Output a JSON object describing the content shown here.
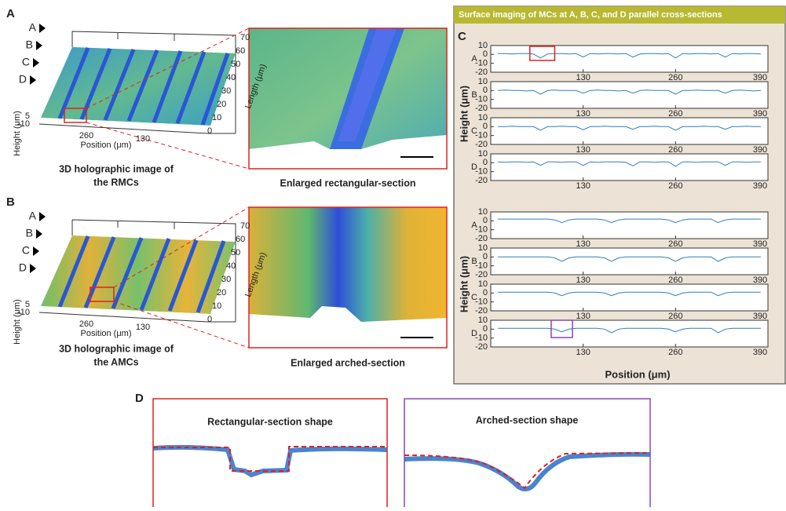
{
  "panel_labels": [
    "A",
    "B",
    "C",
    "D"
  ],
  "panel_a": {
    "row_markers": [
      "A",
      "B",
      "C",
      "D"
    ],
    "length_ticks": [
      70,
      60,
      50,
      40,
      30,
      20,
      10,
      0
    ],
    "length_label": "Length (μm)",
    "position_ticks": [
      260,
      130
    ],
    "position_label": "Position (μm)",
    "height_ticks": [
      5,
      -10
    ],
    "height_label": "Height (μm)",
    "caption": [
      "3D holographic image of",
      "the RMCs"
    ],
    "enlarged_caption": "Enlarged rectangular-section"
  },
  "panel_b": {
    "row_markers": [
      "A",
      "B",
      "C",
      "D"
    ],
    "length_ticks": [
      70,
      60,
      50,
      40,
      30,
      20,
      10,
      0
    ],
    "length_label": "Length (μm)",
    "position_ticks": [
      260,
      130
    ],
    "position_label": "Position (μm)",
    "height_ticks": [
      5,
      -10
    ],
    "height_label": "Height (μm)",
    "caption": [
      "3D holographic image of",
      "the AMCs"
    ],
    "enlarged_caption": "Enlarged arched-section"
  },
  "panel_c": {
    "title": "Surface imaging of  MCs at A, B, C, and D parallel cross-sections",
    "x_label": "Position (μm)",
    "y_label": "Height (μm)",
    "xlim": [
      0,
      390
    ],
    "ylim": [
      -20,
      10
    ],
    "xticks": [
      130,
      260,
      390
    ],
    "yticks": [
      10,
      0,
      -10,
      -20
    ],
    "color": "#2f7fc1",
    "x": [
      10,
      20,
      30,
      40,
      50,
      60,
      70,
      80,
      90,
      100,
      110,
      120,
      130,
      140,
      150,
      160,
      170,
      180,
      190,
      200,
      210,
      220,
      230,
      240,
      250,
      260,
      270,
      280,
      290,
      300,
      310,
      320,
      330,
      340,
      350,
      360,
      370,
      380
    ],
    "groups": [
      {
        "plots": [
          {
            "label": "A",
            "values": [
              1,
              1,
              0.5,
              1,
              1,
              0.5,
              -4,
              0.5,
              1,
              1,
              0.5,
              1,
              -3,
              1,
              0.5,
              1,
              1,
              0.5,
              1,
              -3,
              0.5,
              1,
              1,
              0.5,
              1,
              -4,
              1,
              0.5,
              1,
              1,
              0.5,
              1,
              -3,
              1,
              0.5,
              1,
              1,
              0.5
            ]
          },
          {
            "label": "B",
            "values": [
              0,
              0.5,
              0,
              0,
              -0.5,
              0,
              -4,
              0,
              0.5,
              0,
              0,
              0,
              -3,
              0,
              0.5,
              0,
              0,
              -0.5,
              0,
              -3,
              0,
              0.5,
              0,
              0,
              0,
              -4,
              0,
              0,
              0.5,
              0,
              0,
              0,
              -3,
              0,
              0.5,
              0,
              -0.5,
              0
            ]
          },
          {
            "label": "C",
            "values": [
              0,
              0,
              0.5,
              0,
              0,
              0,
              -4,
              0,
              0,
              0.5,
              0,
              0,
              -3.5,
              0,
              0,
              0.5,
              0,
              0,
              0,
              -3,
              0,
              0,
              0.5,
              0,
              0,
              -4,
              0,
              0,
              0,
              0.5,
              0,
              0,
              -3,
              0,
              0,
              0.5,
              0,
              0
            ]
          },
          {
            "label": "D",
            "values": [
              1,
              0.5,
              1,
              1,
              0.5,
              1,
              -3,
              1,
              1,
              0.5,
              1,
              1,
              -3,
              1,
              0.5,
              1,
              1,
              1,
              0.5,
              -3.5,
              1,
              1,
              0.5,
              1,
              1,
              -4,
              1,
              1,
              0.5,
              1,
              1,
              1,
              -3,
              1,
              1,
              0.5,
              1,
              1
            ]
          }
        ]
      },
      {
        "plots": [
          {
            "label": "A",
            "values": [
              2,
              2,
              2,
              2,
              2,
              2,
              2,
              2,
              1,
              -2,
              1,
              2,
              2,
              2,
              2,
              1,
              -2,
              1,
              2,
              2,
              2,
              2,
              2,
              2,
              1,
              -2,
              1,
              2,
              2,
              2,
              2,
              -2,
              1,
              2,
              2,
              2,
              2,
              2
            ]
          },
          {
            "label": "B",
            "values": [
              0,
              0,
              0,
              0,
              0,
              0,
              0,
              0,
              -1,
              -5,
              -1,
              0,
              0,
              0,
              0,
              -1,
              -5,
              -1,
              0,
              0,
              0,
              0,
              0,
              0,
              -1,
              -5,
              -1,
              0,
              0,
              0,
              0,
              -5,
              -1,
              0,
              0,
              0,
              0,
              0
            ]
          },
          {
            "label": "C",
            "values": [
              1,
              1,
              1,
              1,
              1,
              1,
              1,
              1,
              0,
              -3,
              0,
              1,
              1,
              1,
              1,
              0,
              -3,
              0,
              1,
              1,
              1,
              1,
              1,
              1,
              0,
              -3,
              0,
              1,
              1,
              1,
              1,
              -3,
              0,
              1,
              1,
              1,
              1,
              1
            ]
          },
          {
            "label": "D",
            "values": [
              1,
              1,
              1,
              1,
              1,
              1,
              1,
              1,
              0,
              -3,
              0,
              1,
              1,
              1,
              1,
              0,
              -4,
              0,
              1,
              1,
              1,
              1,
              1,
              1,
              0,
              -3,
              0,
              1,
              1,
              1,
              1,
              -4,
              0,
              1,
              1,
              1,
              1,
              1
            ]
          }
        ]
      }
    ]
  },
  "panel_d": {
    "rect_title": "Rectangular-section shape",
    "arched_title": "Arched-section shape"
  }
}
